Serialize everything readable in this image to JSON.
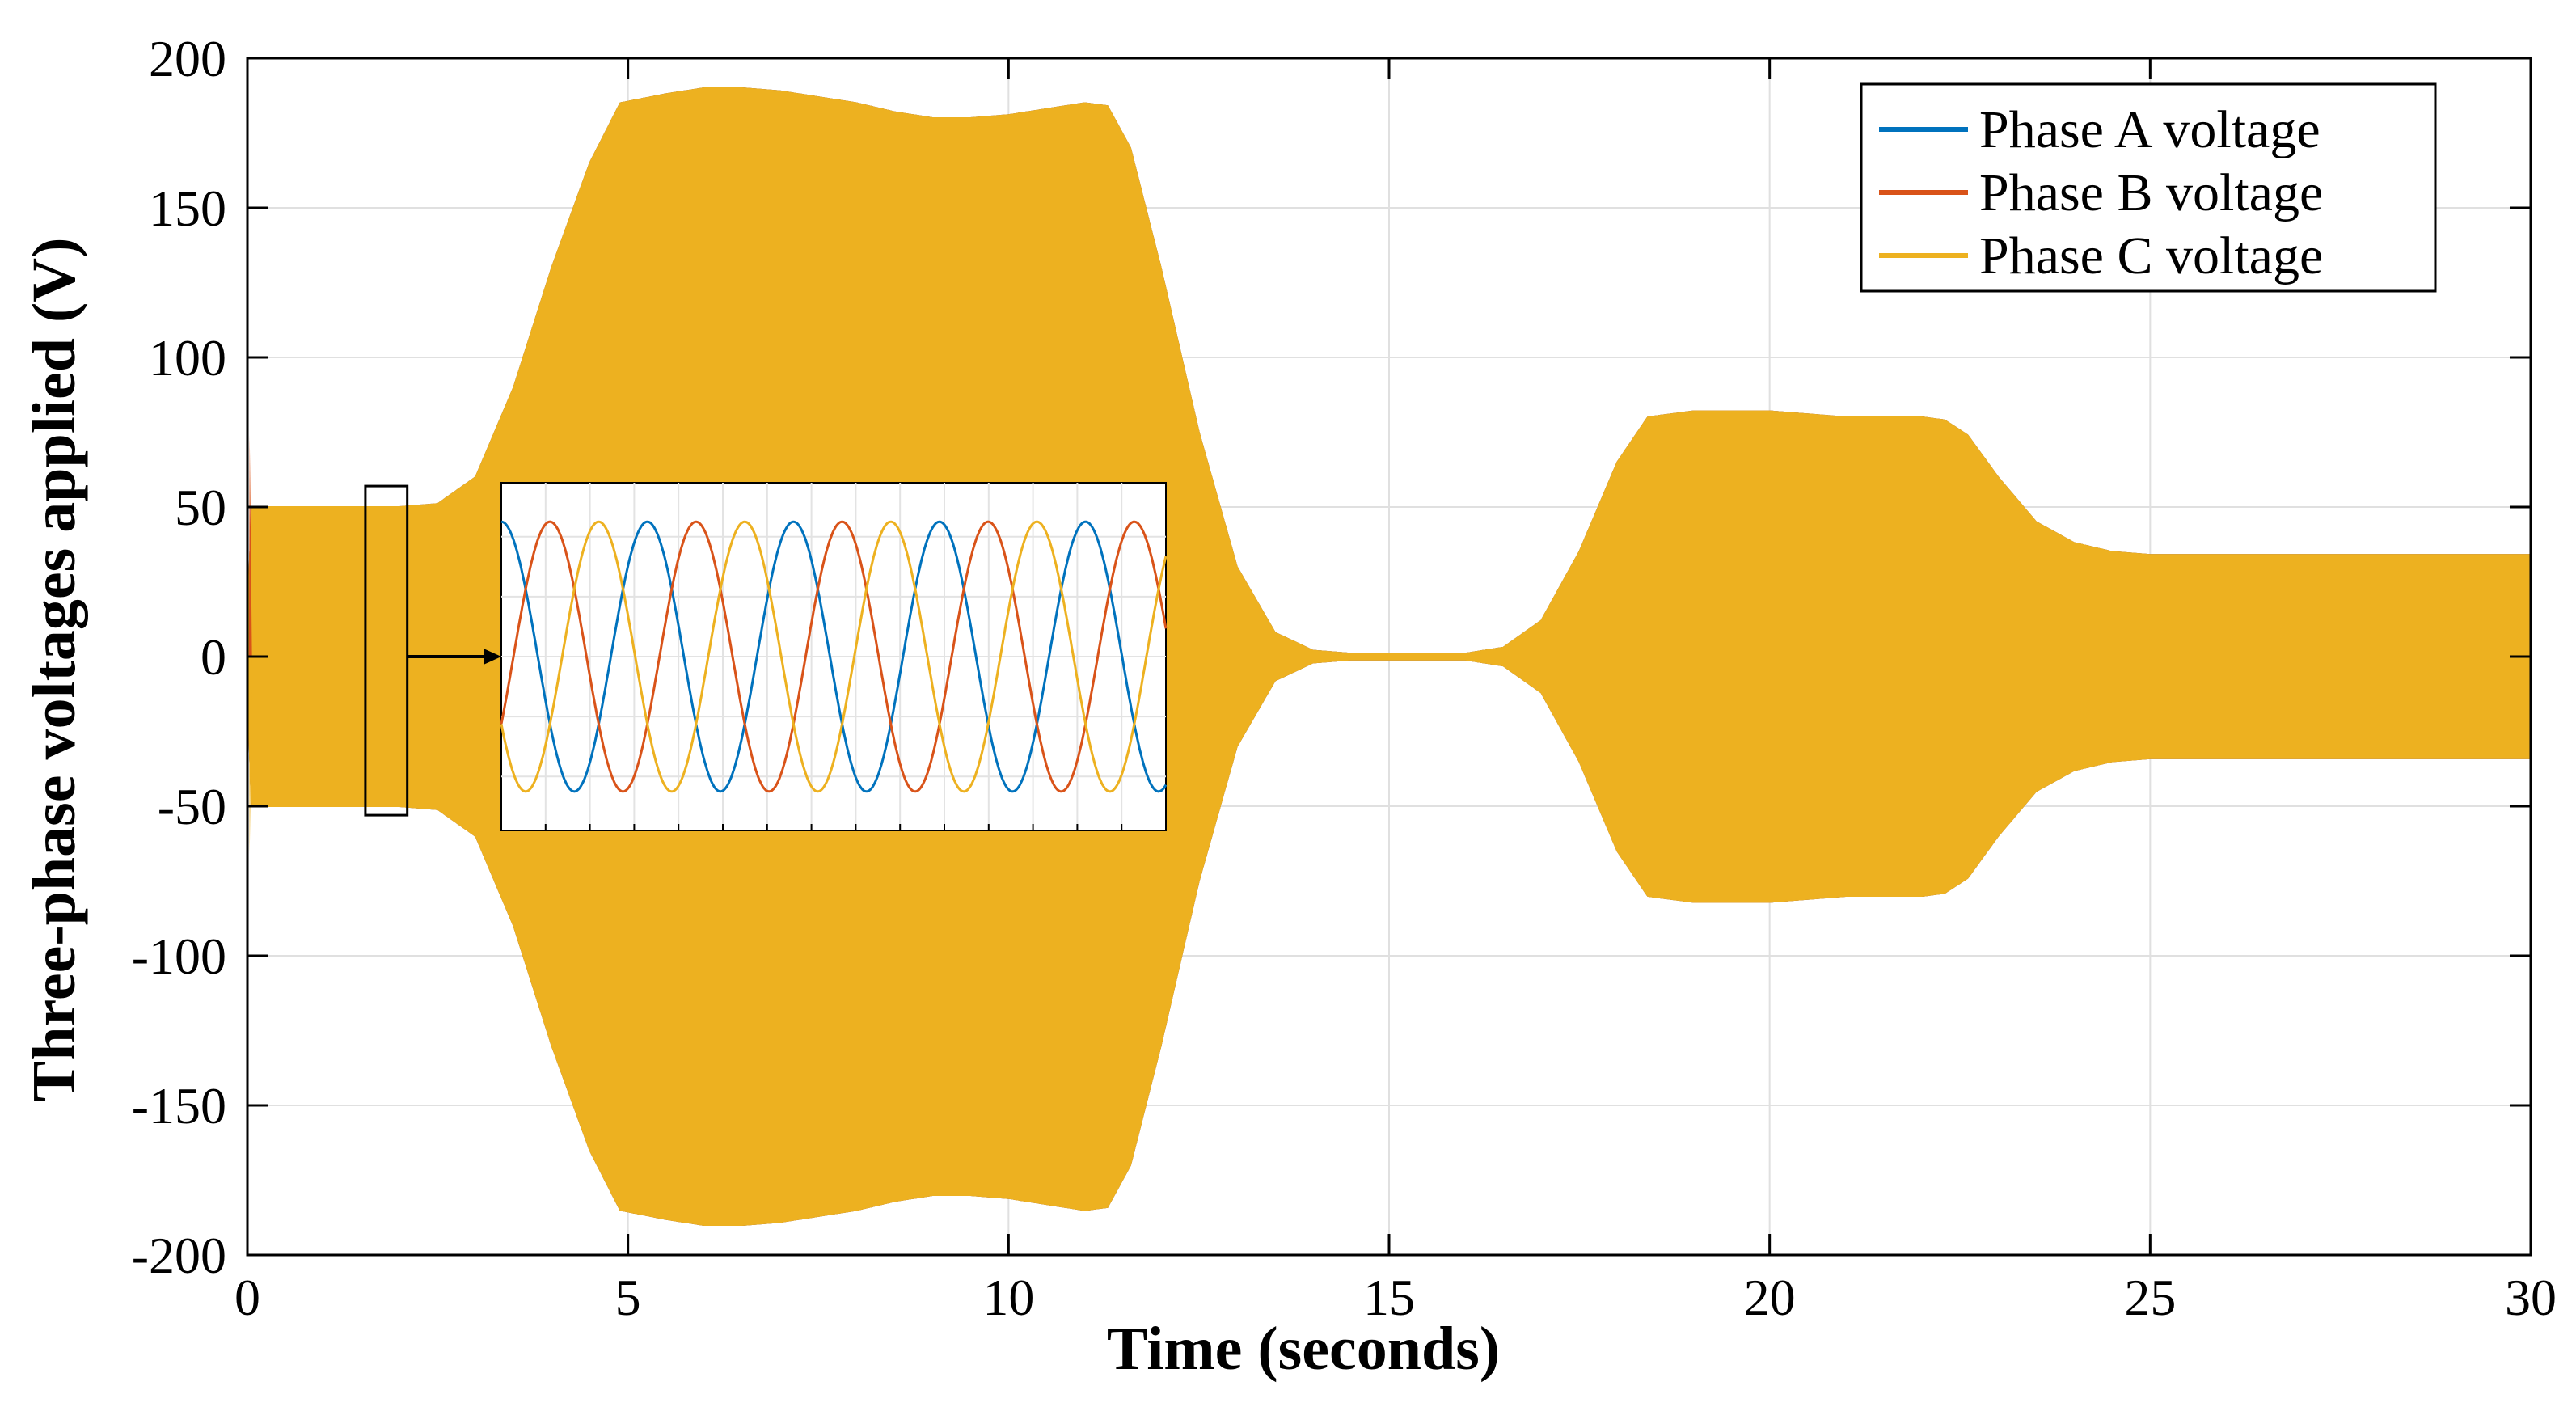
{
  "chart_data": {
    "type": "line",
    "title": "",
    "xlabel": "Time (seconds)",
    "ylabel": "Three-phase voltages applied (V)",
    "xlim": [
      0,
      30
    ],
    "ylim": [
      -200,
      200
    ],
    "xticks": [
      0,
      5,
      10,
      15,
      20,
      25,
      30
    ],
    "xtick_labels": [
      "0",
      "5",
      "10",
      "15",
      "20",
      "25",
      "30"
    ],
    "yticks": [
      200,
      150,
      100,
      50,
      0,
      -50,
      -100,
      -150,
      -200
    ],
    "ytick_labels": [
      "200",
      "150",
      "100",
      "50",
      "0",
      "-50",
      "-100",
      "-150",
      "-200"
    ],
    "grid": true,
    "legend_position": "top-right",
    "colors": {
      "phase_a": "#0072BD",
      "phase_b": "#D95319",
      "phase_c": "#EDB120",
      "grid": "#e0e0e0",
      "axes": "#000000"
    },
    "series": [
      {
        "name": "Phase A voltage",
        "color": "#0072BD"
      },
      {
        "name": "Phase B voltage",
        "color": "#D95319"
      },
      {
        "name": "Phase C voltage",
        "color": "#EDB120"
      }
    ],
    "envelope": {
      "t": [
        0,
        0.05,
        0.3,
        1,
        2,
        2.5,
        3,
        3.5,
        4,
        4.5,
        4.9,
        5.5,
        6,
        6.5,
        7,
        7.5,
        8,
        8.5,
        9,
        9.5,
        10,
        10.5,
        11,
        11.3,
        11.6,
        12,
        12.5,
        13,
        13.5,
        14,
        14.5,
        15,
        15.5,
        16,
        16.5,
        17,
        17.5,
        18,
        18.4,
        19,
        19.5,
        20,
        20.5,
        21,
        21.5,
        22,
        22.3,
        22.6,
        23,
        23.5,
        24,
        24.5,
        25,
        26,
        27,
        28,
        29,
        30
      ],
      "amplitude": [
        0,
        50,
        50,
        50,
        50,
        51,
        60,
        90,
        130,
        165,
        185,
        188,
        190,
        190,
        189,
        187,
        185,
        182,
        180,
        180,
        181,
        183,
        185,
        184,
        170,
        130,
        75,
        30,
        8,
        2,
        1,
        1,
        1,
        1,
        3,
        12,
        35,
        65,
        80,
        82,
        82,
        82,
        81,
        80,
        80,
        80,
        79,
        74,
        60,
        45,
        38,
        35,
        34,
        34,
        34,
        34,
        34,
        34
      ]
    },
    "inset": {
      "source_window_x": [
        1.55,
        2.1
      ],
      "source_window_y": [
        -53,
        57
      ],
      "cycles": 4.55,
      "amplitude": 45,
      "ylim": [
        -58,
        58
      ]
    }
  }
}
